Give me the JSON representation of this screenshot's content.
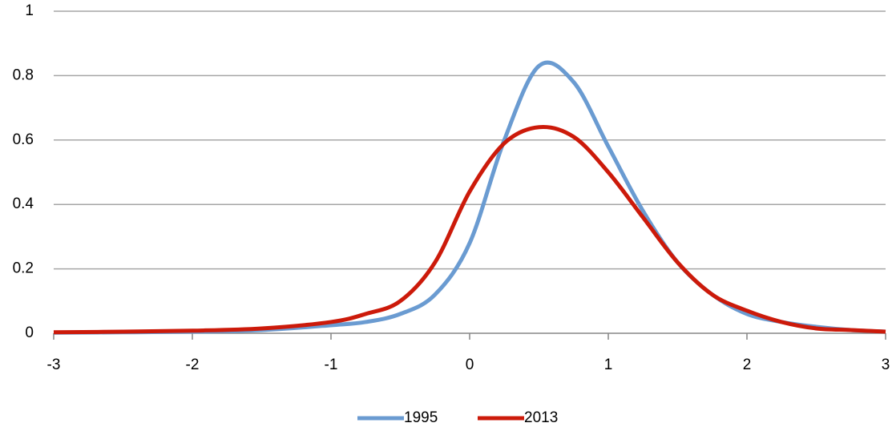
{
  "chart_data": {
    "type": "line",
    "x": [
      -3,
      -2.5,
      -2,
      -1.5,
      -1,
      -0.75,
      -0.5,
      -0.25,
      0,
      0.25,
      0.5,
      0.75,
      1,
      1.25,
      1.5,
      1.75,
      2,
      2.25,
      2.5,
      2.75,
      3
    ],
    "series": [
      {
        "name": "1995",
        "color": "#6a9bd1",
        "values": [
          0.002,
          0.003,
          0.005,
          0.01,
          0.025,
          0.035,
          0.06,
          0.12,
          0.28,
          0.6,
          0.83,
          0.78,
          0.58,
          0.38,
          0.22,
          0.12,
          0.06,
          0.035,
          0.02,
          0.01,
          0.005
        ]
      },
      {
        "name": "2013",
        "color": "#cc1a0a",
        "values": [
          0.003,
          0.005,
          0.008,
          0.015,
          0.035,
          0.06,
          0.1,
          0.22,
          0.44,
          0.59,
          0.64,
          0.61,
          0.5,
          0.36,
          0.22,
          0.12,
          0.07,
          0.035,
          0.015,
          0.01,
          0.005
        ]
      }
    ],
    "xlim": [
      -3,
      3
    ],
    "xticks": [
      -3,
      -2,
      -1,
      0,
      1,
      2,
      3
    ],
    "ylim": [
      0,
      1
    ],
    "yticks": [
      0,
      0.2,
      0.4,
      0.6,
      0.8,
      1
    ],
    "grid": true,
    "legend": "bottom"
  }
}
